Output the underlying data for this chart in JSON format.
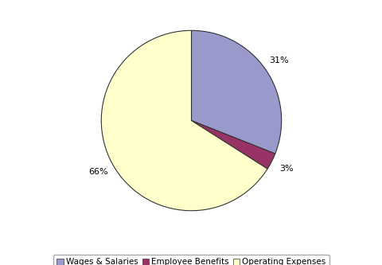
{
  "labels": [
    "Wages & Salaries",
    "Employee Benefits",
    "Operating Expenses"
  ],
  "values": [
    31,
    3,
    66
  ],
  "colors": [
    "#9999cc",
    "#993366",
    "#ffffcc"
  ],
  "edge_color": "#333333",
  "edge_width": 0.8,
  "startangle": 90,
  "background_color": "#ffffff",
  "legend_fontsize": 7.5,
  "figure_width": 4.81,
  "figure_height": 3.33
}
